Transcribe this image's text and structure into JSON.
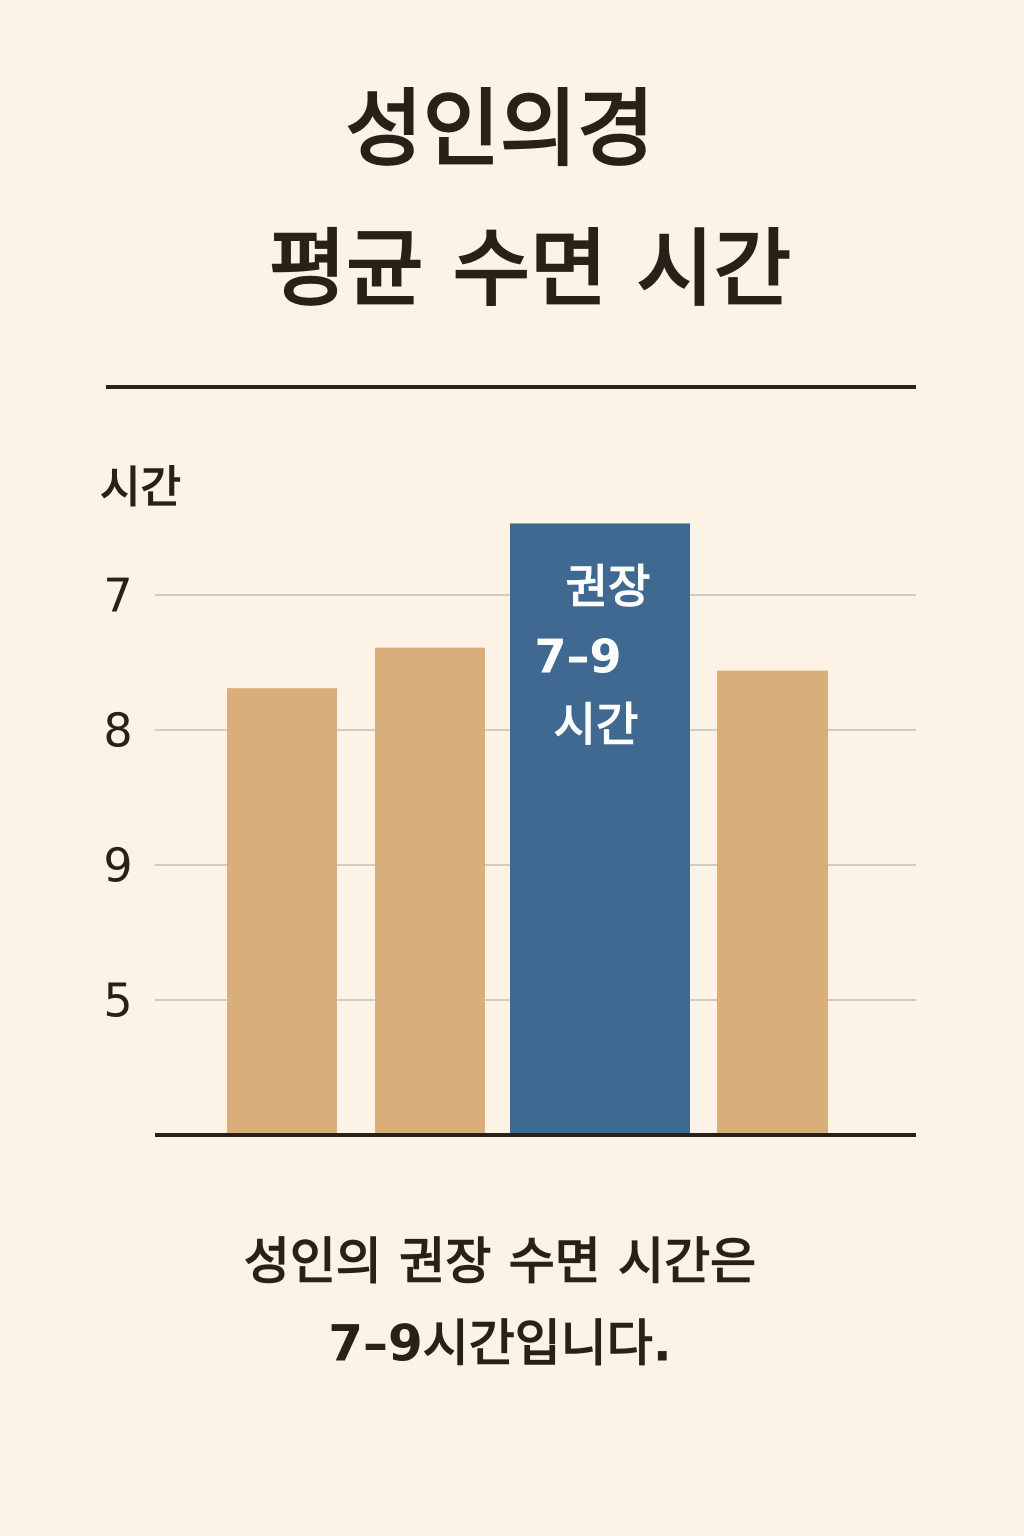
{
  "chart_data": {
    "type": "bar",
    "title": [
      "성인의경",
      "평균 수면 시간"
    ],
    "y_axis_label": "시간",
    "categories": [
      null,
      null,
      null,
      null
    ],
    "values": [
      3.31,
      3.61,
      4.53,
      3.44
    ],
    "colors": [
      "#d9ae7a",
      "#d9ae7a",
      "#3f6990",
      "#d9ae7a"
    ],
    "bar_annotation": {
      "bar": 2,
      "lines": [
        "권장",
        "7–9",
        "시간"
      ]
    },
    "ylim": [
      0,
      5
    ],
    "yticks": [
      {
        "value": 1,
        "label": "5"
      },
      {
        "value": 2,
        "label": "9"
      },
      {
        "value": 3,
        "label": "8"
      },
      {
        "value": 4,
        "label": "7"
      }
    ],
    "grid": true,
    "caption": [
      "성인의 권장 수면 시간은",
      "7–9시간입니다."
    ]
  }
}
